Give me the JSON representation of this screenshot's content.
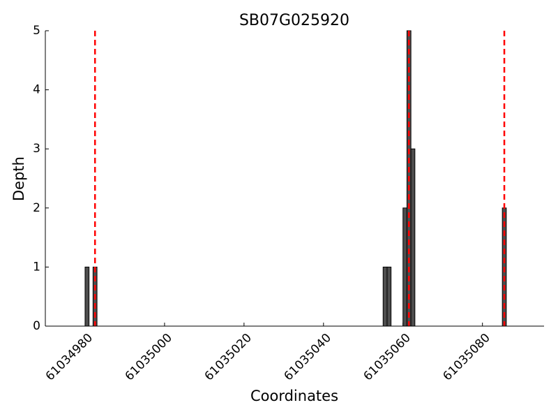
{
  "chart_data": {
    "type": "bar",
    "title": "SB07G025920",
    "x_label": "Coordinates",
    "y_label": "Depth",
    "x": [
      61034980.5,
      61034982.5,
      61035055.5,
      61035056.5,
      61035060.5,
      61035061.5,
      61035062.5,
      61035085.5
    ],
    "values": [
      1,
      1,
      1,
      1,
      2,
      5,
      3,
      2
    ],
    "color": "#4d4d4d",
    "vlines": [
      61034982.5,
      61035061.5,
      61035085.5
    ],
    "vline_color": "#ff0000",
    "xlim": [
      61034970,
      61035095.5
    ],
    "xticks": [
      61034980,
      61035000,
      61035020,
      61035040,
      61035060,
      61035080
    ],
    "ylim": [
      0,
      5
    ],
    "yticks": [
      0,
      1,
      2,
      3,
      4,
      5
    ]
  }
}
